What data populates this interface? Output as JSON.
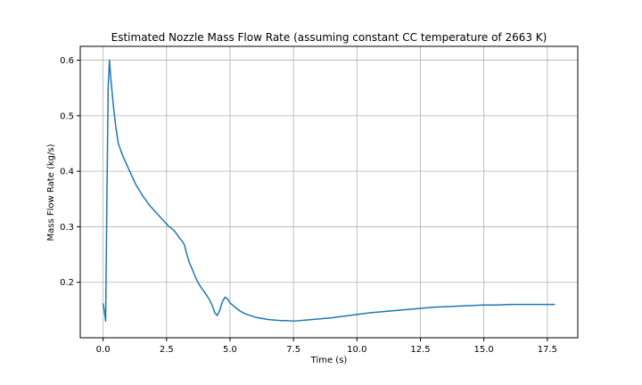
{
  "chart_data": {
    "type": "line",
    "title": "Estimated Nozzle Mass Flow Rate (assuming constant CC temperature of 2663 K)",
    "xlabel": "Time (s)",
    "ylabel": "Mass Flow Rate (kg/s)",
    "xlim": [
      -0.9,
      18.7
    ],
    "ylim": [
      0.1,
      0.625
    ],
    "xticks": [
      0.0,
      2.5,
      5.0,
      7.5,
      10.0,
      12.5,
      15.0,
      17.5
    ],
    "xtick_labels": [
      "0.0",
      "2.5",
      "5.0",
      "7.5",
      "10.0",
      "12.5",
      "15.0",
      "17.5"
    ],
    "yticks": [
      0.2,
      0.3,
      0.4,
      0.5,
      0.6
    ],
    "ytick_labels": [
      "0.2",
      "0.3",
      "0.4",
      "0.5",
      "0.6"
    ],
    "grid": true,
    "color": "#1f77b4",
    "series": [
      {
        "x": [
          0.0,
          0.05,
          0.1,
          0.15,
          0.2,
          0.25,
          0.3,
          0.4,
          0.5,
          0.6,
          0.7,
          0.8,
          0.9,
          1.0,
          1.1,
          1.2,
          1.3,
          1.4,
          1.5,
          1.6,
          1.7,
          1.8,
          1.9,
          2.0,
          2.1,
          2.2,
          2.3,
          2.4,
          2.5,
          2.6,
          2.7,
          2.8,
          2.9,
          3.0,
          3.1,
          3.2,
          3.3,
          3.4,
          3.5,
          3.6,
          3.7,
          3.8,
          3.9,
          4.0,
          4.1,
          4.2,
          4.3,
          4.4,
          4.5,
          4.6,
          4.7,
          4.8,
          4.9,
          5.0,
          5.2,
          5.4,
          5.6,
          5.8,
          6.0,
          6.25,
          6.5,
          6.75,
          7.0,
          7.25,
          7.5,
          7.75,
          8.0,
          8.5,
          9.0,
          9.5,
          10.0,
          10.5,
          11.0,
          11.5,
          12.0,
          12.5,
          13.0,
          13.5,
          14.0,
          14.5,
          15.0,
          15.5,
          16.0,
          16.5,
          17.0,
          17.5,
          17.8
        ],
        "y": [
          0.162,
          0.148,
          0.13,
          0.35,
          0.55,
          0.6,
          0.57,
          0.52,
          0.48,
          0.45,
          0.437,
          0.425,
          0.415,
          0.405,
          0.395,
          0.385,
          0.375,
          0.368,
          0.36,
          0.353,
          0.347,
          0.34,
          0.335,
          0.33,
          0.325,
          0.32,
          0.315,
          0.31,
          0.305,
          0.3,
          0.297,
          0.293,
          0.287,
          0.28,
          0.275,
          0.268,
          0.25,
          0.235,
          0.225,
          0.213,
          0.203,
          0.195,
          0.188,
          0.182,
          0.175,
          0.168,
          0.158,
          0.145,
          0.14,
          0.15,
          0.165,
          0.173,
          0.17,
          0.163,
          0.155,
          0.148,
          0.143,
          0.14,
          0.137,
          0.135,
          0.133,
          0.132,
          0.131,
          0.131,
          0.13,
          0.131,
          0.132,
          0.134,
          0.136,
          0.139,
          0.142,
          0.145,
          0.147,
          0.149,
          0.151,
          0.153,
          0.155,
          0.156,
          0.157,
          0.158,
          0.159,
          0.159,
          0.16,
          0.16,
          0.16,
          0.16,
          0.16
        ]
      }
    ]
  }
}
